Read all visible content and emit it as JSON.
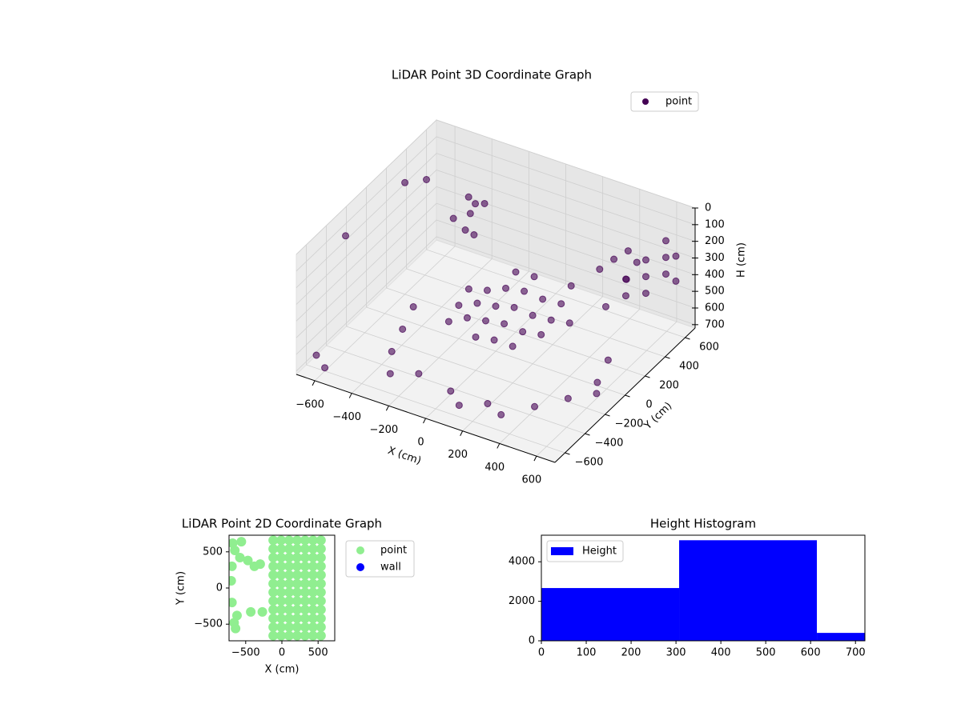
{
  "chart_data": [
    {
      "type": "scatter3d",
      "title": "LiDAR Point 3D Coordinate Graph",
      "xlabel": "X (cm)",
      "ylabel": "Y (cm)",
      "zlabel": "H (cm)",
      "xlim": [
        -700,
        700
      ],
      "ylim": [
        -700,
        700
      ],
      "zlim": [
        720,
        0
      ],
      "xticks": [
        {
          "value": -600,
          "label": "−600"
        },
        {
          "value": -400,
          "label": "−400"
        },
        {
          "value": -200,
          "label": "−200"
        },
        0,
        200,
        400,
        600
      ],
      "yticks": [
        {
          "value": -600,
          "label": "−600"
        },
        {
          "value": -400,
          "label": "−400"
        },
        {
          "value": -200,
          "label": "−200"
        },
        0,
        200,
        400,
        600
      ],
      "zticks": [
        0,
        100,
        200,
        300,
        400,
        500,
        600,
        700
      ],
      "grid": true,
      "legend": "upper right",
      "series": [
        {
          "name": "point",
          "color": "#440154",
          "x": [
            0,
            100,
            200,
            -100,
            0,
            0,
            100,
            100,
            200,
            200,
            300,
            -100,
            -100,
            -200,
            300,
            300,
            0,
            100,
            0,
            100,
            200,
            -200,
            -200,
            300,
            400,
            -300,
            -300,
            -250,
            -300,
            -280,
            -320,
            400,
            450,
            500,
            520,
            480,
            -400,
            -200,
            0,
            200,
            400,
            500,
            550,
            500,
            -450,
            -500,
            -300,
            100,
            300,
            600,
            650,
            650,
            650,
            650,
            650,
            650,
            650,
            650,
            650,
            650,
            650,
            -650,
            -600,
            -700,
            -500,
            -600,
            -700
          ],
          "y": [
            0,
            0,
            0,
            0,
            100,
            -100,
            100,
            -100,
            100,
            -100,
            0,
            100,
            -100,
            0,
            100,
            -100,
            200,
            200,
            -200,
            -200,
            -200,
            -100,
            100,
            200,
            0,
            350,
            300,
            350,
            250,
            300,
            320,
            300,
            350,
            400,
            450,
            420,
            -300,
            -400,
            -450,
            -450,
            -350,
            -200,
            0,
            200,
            -100,
            100,
            -500,
            -550,
            -500,
            -100,
            500,
            500,
            500,
            300,
            300,
            300,
            100,
            100,
            -100,
            600,
            600,
            -300,
            200,
            600,
            500,
            -600,
            -500
          ],
          "z": [
            450,
            420,
            430,
            470,
            400,
            480,
            380,
            460,
            390,
            470,
            420,
            450,
            500,
            520,
            380,
            450,
            360,
            350,
            520,
            500,
            500,
            560,
            480,
            330,
            400,
            150,
            180,
            130,
            250,
            300,
            100,
            250,
            200,
            160,
            250,
            350,
            700,
            700,
            700,
            700,
            700,
            700,
            700,
            700,
            700,
            700,
            680,
            690,
            700,
            690,
            100,
            200,
            300,
            100,
            200,
            300,
            100,
            200,
            150,
            250,
            400,
            100,
            50,
            300,
            400,
            700,
            720
          ]
        }
      ]
    },
    {
      "type": "scatter",
      "title": "LiDAR Point 2D Coordinate Graph",
      "xlabel": "X (cm)",
      "ylabel": "Y (cm)",
      "xlim": [
        -730,
        730
      ],
      "ylim": [
        -730,
        730
      ],
      "xticks": [
        {
          "value": -500,
          "label": "−500"
        },
        0,
        500
      ],
      "yticks": [
        {
          "value": -500,
          "label": "−500"
        },
        0,
        500
      ],
      "legend": "outside right",
      "series": [
        {
          "name": "point",
          "color": "#90ee90",
          "x": [
            -120,
            -10,
            100,
            210,
            320,
            430,
            540,
            -120,
            -10,
            100,
            210,
            320,
            430,
            540,
            -120,
            -10,
            100,
            210,
            320,
            430,
            540,
            -120,
            -10,
            100,
            210,
            320,
            430,
            540,
            -120,
            -10,
            100,
            210,
            320,
            430,
            540,
            -120,
            -10,
            100,
            210,
            320,
            430,
            540,
            -120,
            -10,
            100,
            210,
            320,
            430,
            540,
            -120,
            -10,
            100,
            210,
            320,
            430,
            540,
            -120,
            -10,
            100,
            210,
            320,
            430,
            540,
            -120,
            -10,
            100,
            210,
            320,
            430,
            540,
            -120,
            -10,
            100,
            210,
            320,
            430,
            540,
            -120,
            -10,
            100,
            210,
            320,
            430,
            540,
            -680,
            -650,
            -580,
            -470,
            -380,
            -300,
            -690,
            -620,
            -660,
            -640,
            -430,
            -270,
            -690,
            -700,
            -560
          ],
          "y": [
            -660,
            -660,
            -660,
            -660,
            -660,
            -660,
            -660,
            -540,
            -540,
            -540,
            -540,
            -540,
            -540,
            -540,
            -420,
            -420,
            -420,
            -420,
            -420,
            -420,
            -420,
            -300,
            -300,
            -300,
            -300,
            -300,
            -300,
            -300,
            -180,
            -180,
            -180,
            -180,
            -180,
            -180,
            -180,
            -60,
            -60,
            -60,
            -60,
            -60,
            -60,
            -60,
            60,
            60,
            60,
            60,
            60,
            60,
            60,
            180,
            180,
            180,
            180,
            180,
            180,
            180,
            300,
            300,
            300,
            300,
            300,
            300,
            300,
            420,
            420,
            420,
            420,
            420,
            420,
            420,
            540,
            540,
            540,
            540,
            540,
            540,
            540,
            660,
            660,
            660,
            660,
            660,
            660,
            660,
            620,
            520,
            420,
            380,
            300,
            330,
            300,
            -380,
            -480,
            -560,
            -330,
            -330,
            -200,
            100,
            640
          ]
        },
        {
          "name": "wall",
          "color": "#0000ff",
          "x": [],
          "y": []
        }
      ]
    },
    {
      "type": "histogram",
      "title": "Height Histogram",
      "bins": [
        0,
        307,
        614,
        721
      ],
      "xlim": [
        0,
        721
      ],
      "ylim": [
        0,
        5345
      ],
      "xticks": [
        0,
        100,
        200,
        300,
        400,
        500,
        600,
        700
      ],
      "yticks": [
        0,
        2000,
        4000
      ],
      "legend": "upper left",
      "series": [
        {
          "name": "Height",
          "color": "#0000ff",
          "values": [
            2670,
            5090,
            400
          ]
        }
      ]
    }
  ]
}
